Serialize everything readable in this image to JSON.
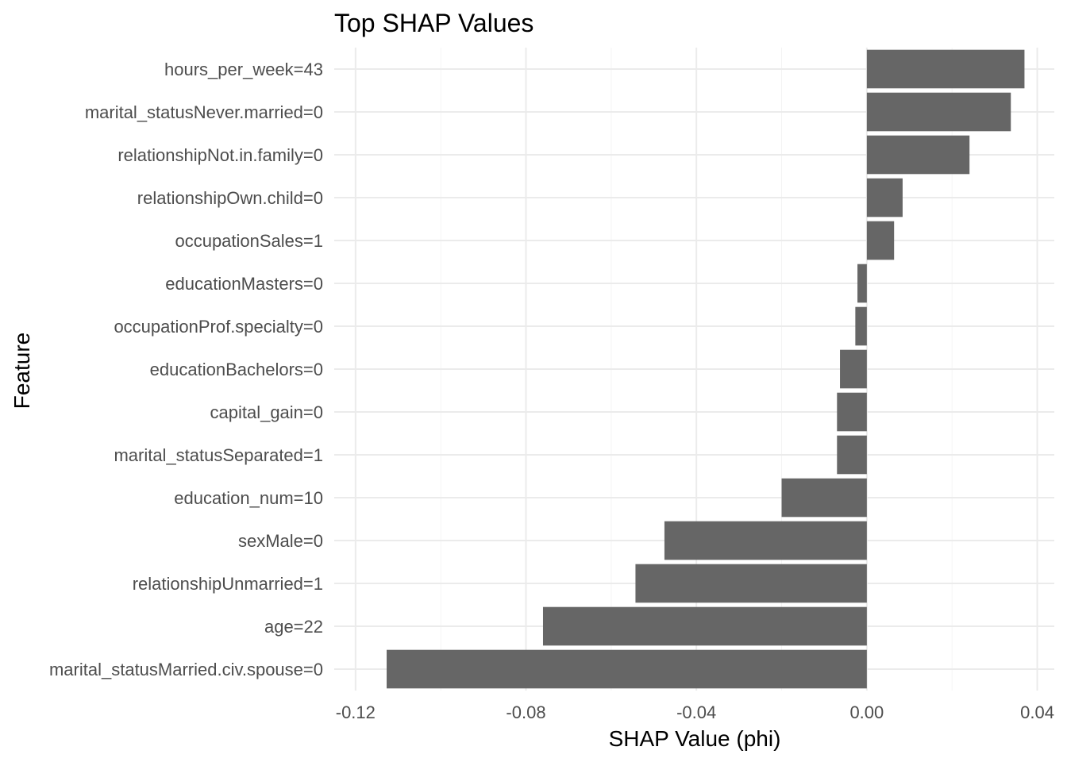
{
  "chart_data": {
    "type": "bar",
    "orientation": "horizontal",
    "title": "Top SHAP Values",
    "xlabel": "SHAP Value (phi)",
    "ylabel": "Feature",
    "xlim": [
      -0.12,
      0.04
    ],
    "xticks": [
      -0.12,
      -0.08,
      -0.04,
      0.0,
      0.04
    ],
    "xtick_labels": [
      "-0.12",
      "-0.08",
      "-0.04",
      "0.00",
      "0.04"
    ],
    "categories": [
      "hours_per_week=43",
      "marital_statusNever.married=0",
      "relationshipNot.in.family=0",
      "relationshipOwn.child=0",
      "occupationSales=1",
      "educationMasters=0",
      "occupationProf.specialty=0",
      "educationBachelors=0",
      "capital_gain=0",
      "marital_statusSeparated=1",
      "education_num=10",
      "sexMale=0",
      "relationshipUnmarried=1",
      "age=22",
      "marital_statusMarried.civ.spouse=0"
    ],
    "values": [
      0.037,
      0.0338,
      0.0241,
      0.0084,
      0.0064,
      -0.0022,
      -0.0027,
      -0.0063,
      -0.007,
      -0.007,
      -0.02,
      -0.0475,
      -0.0543,
      -0.076,
      -0.1127
    ],
    "grid": true,
    "legend": "none",
    "colors": {
      "bar": "#666666",
      "grid": "#ebebeb",
      "background": "#ffffff"
    }
  }
}
